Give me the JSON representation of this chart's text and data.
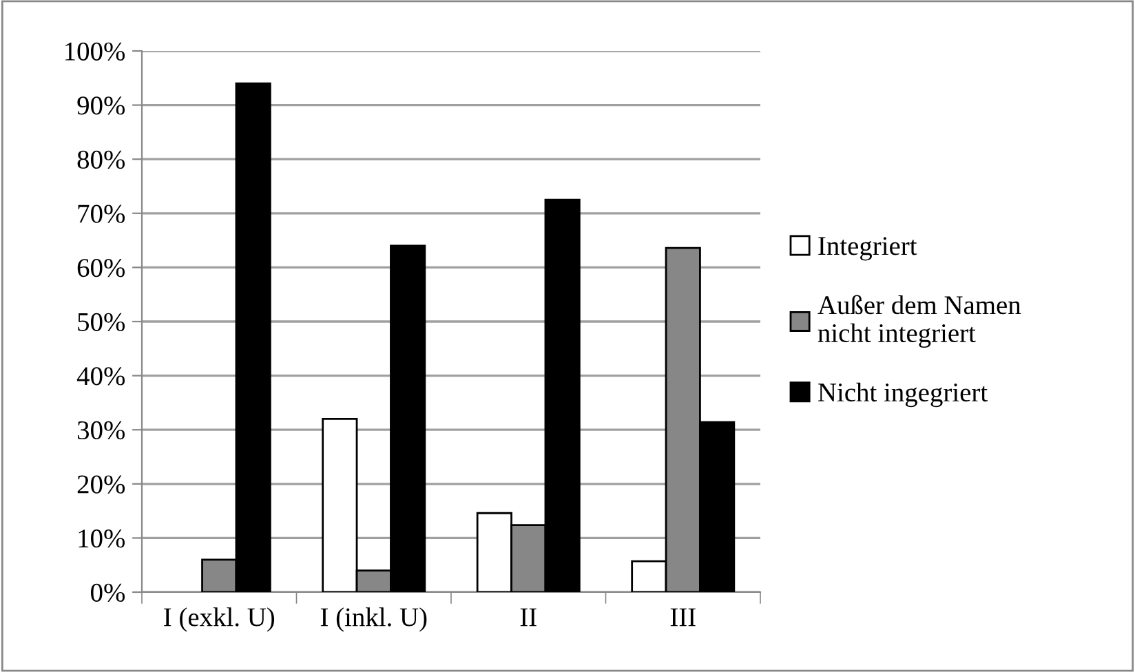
{
  "chart_data": {
    "type": "bar",
    "categories": [
      "I (exkl. U)",
      "I (inkl. U)",
      "II",
      "III"
    ],
    "series": [
      {
        "name": "Integriert",
        "color": "#ffffff",
        "values": [
          null,
          32,
          14.6,
          5.7
        ]
      },
      {
        "name": "Außer dem Namen\nnicht integriert",
        "color": "#878787",
        "values": [
          6,
          4,
          12.4,
          63.6
        ]
      },
      {
        "name": "Nicht ingegriert",
        "color": "#000000",
        "values": [
          94,
          64,
          72.5,
          31.4
        ]
      }
    ],
    "ylim": [
      0,
      100
    ],
    "yticks": [
      {
        "value": 0,
        "label": "0%"
      },
      {
        "value": 10,
        "label": "10%"
      },
      {
        "value": 20,
        "label": "20%"
      },
      {
        "value": 30,
        "label": "30%"
      },
      {
        "value": 40,
        "label": "40%"
      },
      {
        "value": 50,
        "label": "50%"
      },
      {
        "value": 60,
        "label": "60%"
      },
      {
        "value": 70,
        "label": "70%"
      },
      {
        "value": 80,
        "label": "80%"
      },
      {
        "value": 90,
        "label": "90%"
      },
      {
        "value": 100,
        "label": "100%"
      }
    ],
    "grid": "y",
    "legend": "right"
  }
}
